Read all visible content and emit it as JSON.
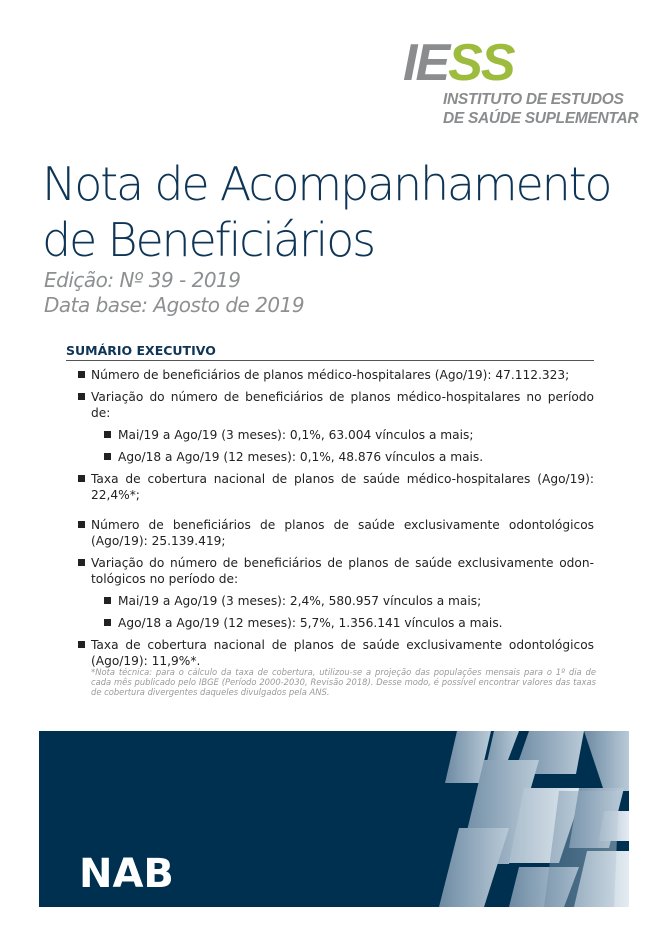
{
  "logo": {
    "mark_ie": "IE",
    "mark_ss": "SS",
    "line1": "INSTITUTO DE ESTUDOS",
    "line2": "DE SAÚDE SUPLEMENTAR"
  },
  "title": {
    "line1": "Nota de Acompanhamento",
    "line2": "de Beneficiários"
  },
  "edition": "Edição: Nº 39 - 2019",
  "data_base": "Data base: Agosto de 2019",
  "sumario": {
    "heading": "SUMÁRIO EXECUTIVO",
    "items": [
      {
        "text": "Número de beneficiários de planos médico-hospitalares (Ago/19): 47.112.323;",
        "level": 1
      },
      {
        "text": "Variação do número de beneficiários de planos médico-hospitalares no período de:",
        "level": 1
      },
      {
        "text": "Mai/19 a Ago/19 (3 meses): 0,1%, 63.004 vínculos a mais;",
        "level": 2
      },
      {
        "text": "Ago/18 a Ago/19 (12 meses): 0,1%, 48.876 vínculos a mais.",
        "level": 2
      },
      {
        "text": "Taxa de cobertura nacional de planos de saúde médico-hospitalares (Ago/19): 22,4%*;",
        "level": 1
      },
      {
        "text": "Número de beneficiários de planos de saúde exclusivamente odontológicos (Ago/19): 25.139.419;",
        "level": 1
      },
      {
        "text": "Variação do número de beneficiários de planos de saúde exclusivamente odon-tológicos no período de:",
        "level": 1
      },
      {
        "text": "Mai/19 a Ago/19 (3 meses): 2,4%, 580.957 vínculos a mais;",
        "level": 2
      },
      {
        "text": "Ago/18 a Ago/19 (12 meses): 5,7%, 1.356.141 vínculos a mais.",
        "level": 2
      },
      {
        "text": "Taxa de cobertura nacional de planos de saúde exclusivamente odontológicos (Ago/19): 11,9%*.",
        "level": 1
      }
    ]
  },
  "note": "*Nota técnica: para o cálculo da taxa de cobertura, utilizou-se a projeção das populações mensais para o 1º dia de cada mês publicado pelo IBGE (Período 2000-2030, Revisão 2018). Desse modo, é possível encontrar valores das taxas de cobertura divergentes daqueles divulgados pela ANS.",
  "band": {
    "label": "NAB",
    "color": "#00304f"
  }
}
